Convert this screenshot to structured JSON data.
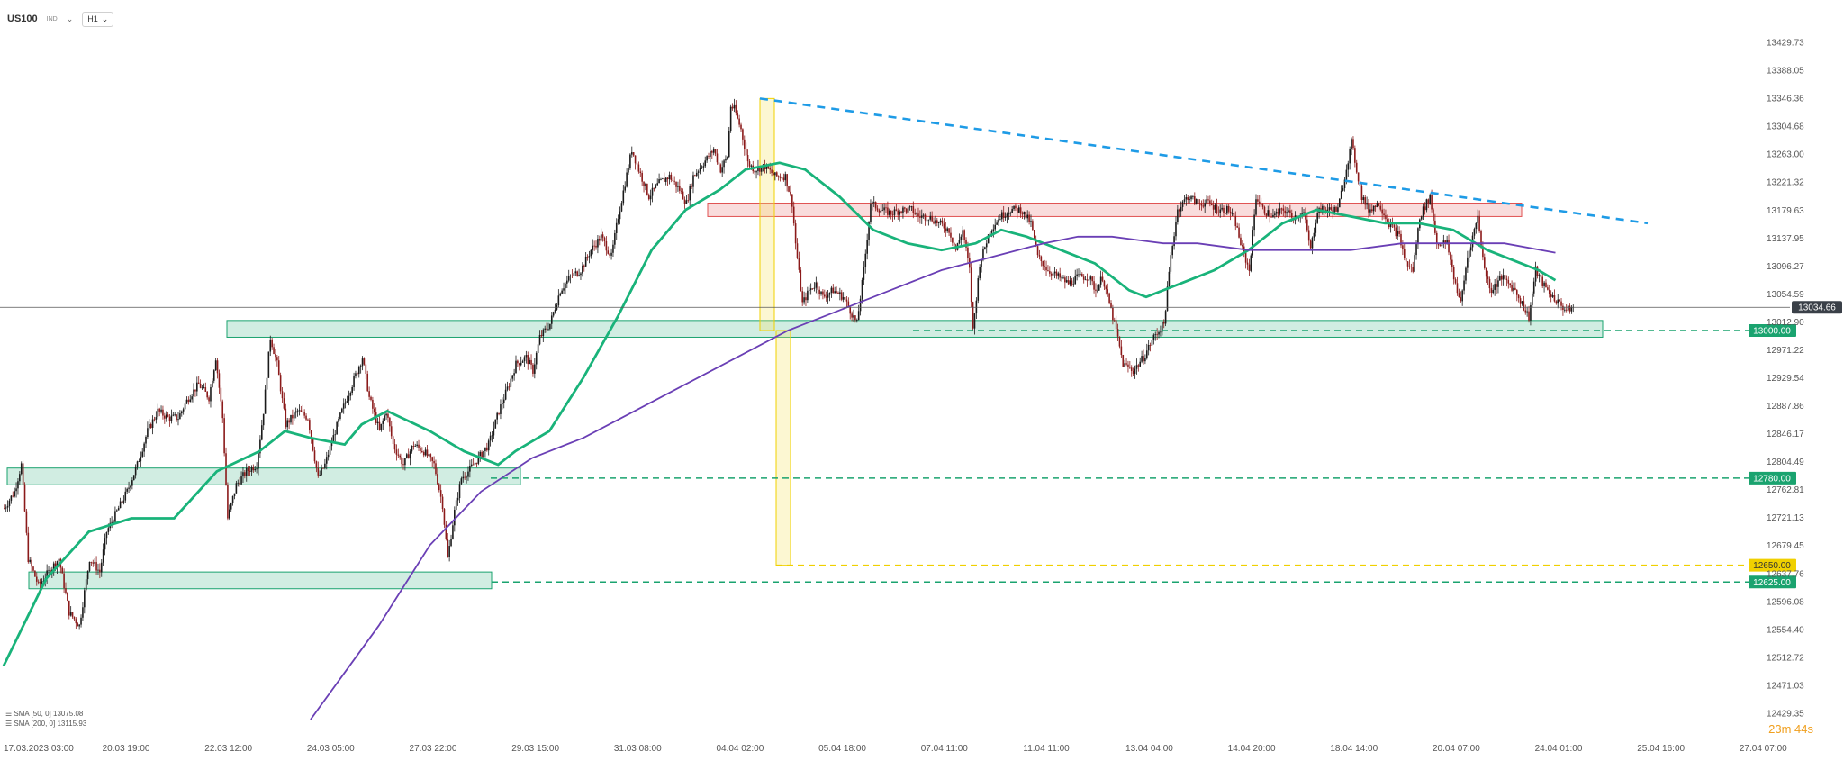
{
  "toolbar": {
    "symbol": "US100",
    "symbol_tag": "IND",
    "timeframe": "H1"
  },
  "countdown": "23m 44s",
  "chart_data": {
    "type": "candlestick",
    "title": "",
    "xlabel": "",
    "ylabel": "",
    "ylim": [
      12400,
      13460
    ],
    "y_ticks": [
      13429.73,
      13388.05,
      13346.36,
      13304.68,
      13263.0,
      13221.32,
      13179.63,
      13137.95,
      13096.27,
      13054.59,
      13012.9,
      12971.22,
      12929.54,
      12887.86,
      12846.17,
      12804.49,
      12762.81,
      12721.13,
      12679.45,
      12637.76,
      12596.08,
      12554.4,
      12512.72,
      12471.03,
      12429.35
    ],
    "x_ticks": [
      "17.03.2023  03:00",
      "20.03  19:00",
      "22.03  12:00",
      "24.03  05:00",
      "27.03  22:00",
      "29.03  15:00",
      "31.03  08:00",
      "04.04  02:00",
      "05.04  18:00",
      "07.04  11:00",
      "11.04  11:00",
      "13.04  04:00",
      "14.04  20:00",
      "18.04  14:00",
      "20.04  07:00",
      "24.04  01:00",
      "25.04  16:00",
      "27.04  07:00"
    ],
    "x_tick_index": [
      0,
      60,
      120,
      180,
      240,
      300,
      360,
      420,
      480,
      540,
      600,
      660,
      720,
      780,
      840,
      900,
      960,
      1020
    ],
    "last_price": "13034.66",
    "current_price": 13034.66,
    "price_path": [
      [
        0,
        12735
      ],
      [
        6,
        12760
      ],
      [
        10,
        12800
      ],
      [
        14,
        12660
      ],
      [
        20,
        12620
      ],
      [
        26,
        12640
      ],
      [
        32,
        12660
      ],
      [
        38,
        12580
      ],
      [
        44,
        12560
      ],
      [
        50,
        12660
      ],
      [
        56,
        12640
      ],
      [
        60,
        12700
      ],
      [
        66,
        12730
      ],
      [
        72,
        12760
      ],
      [
        78,
        12800
      ],
      [
        84,
        12850
      ],
      [
        90,
        12880
      ],
      [
        96,
        12870
      ],
      [
        102,
        12870
      ],
      [
        108,
        12900
      ],
      [
        114,
        12920
      ],
      [
        120,
        12900
      ],
      [
        124,
        12960
      ],
      [
        128,
        12870
      ],
      [
        131,
        12720
      ],
      [
        136,
        12770
      ],
      [
        142,
        12790
      ],
      [
        148,
        12800
      ],
      [
        152,
        12880
      ],
      [
        156,
        12990
      ],
      [
        160,
        12950
      ],
      [
        165,
        12860
      ],
      [
        172,
        12880
      ],
      [
        178,
        12870
      ],
      [
        184,
        12780
      ],
      [
        188,
        12800
      ],
      [
        194,
        12850
      ],
      [
        198,
        12880
      ],
      [
        204,
        12920
      ],
      [
        210,
        12960
      ],
      [
        214,
        12900
      ],
      [
        220,
        12850
      ],
      [
        224,
        12880
      ],
      [
        228,
        12830
      ],
      [
        234,
        12800
      ],
      [
        240,
        12830
      ],
      [
        246,
        12820
      ],
      [
        252,
        12800
      ],
      [
        257,
        12740
      ],
      [
        260,
        12660
      ],
      [
        264,
        12730
      ],
      [
        268,
        12780
      ],
      [
        272,
        12790
      ],
      [
        278,
        12810
      ],
      [
        284,
        12830
      ],
      [
        290,
        12880
      ],
      [
        296,
        12920
      ],
      [
        300,
        12950
      ],
      [
        306,
        12960
      ],
      [
        310,
        12940
      ],
      [
        314,
        12990
      ],
      [
        320,
        13010
      ],
      [
        326,
        13060
      ],
      [
        332,
        13080
      ],
      [
        338,
        13090
      ],
      [
        344,
        13120
      ],
      [
        350,
        13140
      ],
      [
        356,
        13110
      ],
      [
        360,
        13170
      ],
      [
        364,
        13220
      ],
      [
        368,
        13270
      ],
      [
        372,
        13240
      ],
      [
        378,
        13200
      ],
      [
        384,
        13220
      ],
      [
        390,
        13230
      ],
      [
        396,
        13210
      ],
      [
        400,
        13190
      ],
      [
        404,
        13230
      ],
      [
        410,
        13250
      ],
      [
        416,
        13270
      ],
      [
        420,
        13240
      ],
      [
        424,
        13260
      ],
      [
        426,
        13335
      ],
      [
        428,
        13330
      ],
      [
        432,
        13300
      ],
      [
        436,
        13250
      ],
      [
        440,
        13240
      ],
      [
        446,
        13245
      ],
      [
        452,
        13230
      ],
      [
        458,
        13230
      ],
      [
        462,
        13190
      ],
      [
        464,
        13130
      ],
      [
        468,
        13040
      ],
      [
        472,
        13060
      ],
      [
        476,
        13070
      ],
      [
        480,
        13050
      ],
      [
        486,
        13060
      ],
      [
        492,
        13050
      ],
      [
        496,
        13030
      ],
      [
        500,
        13010
      ],
      [
        504,
        13090
      ],
      [
        508,
        13190
      ],
      [
        514,
        13180
      ],
      [
        520,
        13175
      ],
      [
        526,
        13180
      ],
      [
        532,
        13180
      ],
      [
        536,
        13170
      ],
      [
        542,
        13170
      ],
      [
        548,
        13160
      ],
      [
        554,
        13150
      ],
      [
        558,
        13120
      ],
      [
        562,
        13150
      ],
      [
        566,
        13090
      ],
      [
        568,
        13000
      ],
      [
        572,
        13100
      ],
      [
        578,
        13150
      ],
      [
        584,
        13170
      ],
      [
        590,
        13180
      ],
      [
        596,
        13180
      ],
      [
        602,
        13160
      ],
      [
        606,
        13110
      ],
      [
        612,
        13090
      ],
      [
        618,
        13080
      ],
      [
        624,
        13070
      ],
      [
        630,
        13080
      ],
      [
        636,
        13080
      ],
      [
        640,
        13060
      ],
      [
        644,
        13080
      ],
      [
        648,
        13040
      ],
      [
        652,
        13000
      ],
      [
        656,
        12950
      ],
      [
        662,
        12940
      ],
      [
        668,
        12960
      ],
      [
        674,
        12990
      ],
      [
        680,
        13010
      ],
      [
        684,
        13110
      ],
      [
        688,
        13180
      ],
      [
        694,
        13200
      ],
      [
        700,
        13190
      ],
      [
        706,
        13190
      ],
      [
        712,
        13180
      ],
      [
        718,
        13180
      ],
      [
        722,
        13160
      ],
      [
        726,
        13120
      ],
      [
        730,
        13090
      ],
      [
        734,
        13200
      ],
      [
        738,
        13180
      ],
      [
        744,
        13170
      ],
      [
        750,
        13180
      ],
      [
        756,
        13170
      ],
      [
        762,
        13175
      ],
      [
        766,
        13120
      ],
      [
        770,
        13180
      ],
      [
        776,
        13180
      ],
      [
        782,
        13180
      ],
      [
        786,
        13230
      ],
      [
        790,
        13280
      ],
      [
        796,
        13200
      ],
      [
        800,
        13180
      ],
      [
        806,
        13190
      ],
      [
        812,
        13160
      ],
      [
        818,
        13140
      ],
      [
        822,
        13100
      ],
      [
        826,
        13090
      ],
      [
        830,
        13170
      ],
      [
        836,
        13200
      ],
      [
        840,
        13130
      ],
      [
        846,
        13130
      ],
      [
        850,
        13080
      ],
      [
        854,
        13040
      ],
      [
        858,
        13110
      ],
      [
        864,
        13170
      ],
      [
        868,
        13090
      ],
      [
        872,
        13060
      ],
      [
        878,
        13080
      ],
      [
        882,
        13070
      ],
      [
        886,
        13060
      ],
      [
        890,
        13040
      ],
      [
        894,
        13020
      ],
      [
        898,
        13090
      ],
      [
        902,
        13070
      ],
      [
        908,
        13050
      ],
      [
        912,
        13040
      ],
      [
        916,
        13030
      ],
      [
        920,
        13034.66
      ]
    ],
    "annotations": [
      {
        "type": "level",
        "label": "13000.00",
        "value": 13000,
        "color": "#1aa36f",
        "style": "dashed"
      },
      {
        "type": "level",
        "label": "12780.00",
        "value": 12780,
        "color": "#1aa36f",
        "style": "dashed"
      },
      {
        "type": "level",
        "label": "12650.00",
        "value": 12650,
        "color": "#f0d000",
        "style": "dashed"
      },
      {
        "type": "level",
        "label": "12625.00",
        "value": 12625,
        "color": "#1aa36f",
        "style": "dashed"
      },
      {
        "type": "zone",
        "from": 12990,
        "to": 13015,
        "color": "#1aa36f"
      },
      {
        "type": "zone",
        "from": 12770,
        "to": 12795,
        "color": "#1aa36f"
      },
      {
        "type": "zone",
        "from": 12615,
        "to": 12640,
        "color": "#1aa36f"
      },
      {
        "type": "zone",
        "from": 13170,
        "to": 13190,
        "color": "#e05050"
      },
      {
        "type": "trendline",
        "from": [
          13346
        ],
        "to": [
          13170
        ],
        "color": "#1e9be6"
      }
    ],
    "series": [
      {
        "name": "SMA [50, 0]",
        "value": "13075.08",
        "color": "#19b37a",
        "path": [
          [
            0,
            12500
          ],
          [
            25,
            12630
          ],
          [
            50,
            12700
          ],
          [
            75,
            12720
          ],
          [
            100,
            12720
          ],
          [
            125,
            12790
          ],
          [
            150,
            12820
          ],
          [
            165,
            12850
          ],
          [
            180,
            12840
          ],
          [
            200,
            12830
          ],
          [
            210,
            12860
          ],
          [
            225,
            12880
          ],
          [
            250,
            12850
          ],
          [
            270,
            12820
          ],
          [
            290,
            12800
          ],
          [
            300,
            12820
          ],
          [
            320,
            12850
          ],
          [
            340,
            12930
          ],
          [
            360,
            13020
          ],
          [
            380,
            13120
          ],
          [
            400,
            13180
          ],
          [
            420,
            13210
          ],
          [
            435,
            13240
          ],
          [
            455,
            13250
          ],
          [
            470,
            13240
          ],
          [
            490,
            13200
          ],
          [
            510,
            13150
          ],
          [
            530,
            13130
          ],
          [
            550,
            13120
          ],
          [
            570,
            13130
          ],
          [
            585,
            13150
          ],
          [
            600,
            13140
          ],
          [
            620,
            13120
          ],
          [
            640,
            13100
          ],
          [
            660,
            13060
          ],
          [
            670,
            13050
          ],
          [
            690,
            13070
          ],
          [
            710,
            13090
          ],
          [
            730,
            13120
          ],
          [
            750,
            13160
          ],
          [
            770,
            13180
          ],
          [
            790,
            13170
          ],
          [
            810,
            13160
          ],
          [
            830,
            13160
          ],
          [
            850,
            13150
          ],
          [
            870,
            13120
          ],
          [
            890,
            13100
          ],
          [
            900,
            13090
          ],
          [
            910,
            13075
          ]
        ]
      },
      {
        "name": "SMA [200, 0]",
        "value": "13115.93",
        "color": "#6a3fb5",
        "path": [
          [
            180,
            12420
          ],
          [
            220,
            12560
          ],
          [
            250,
            12680
          ],
          [
            280,
            12760
          ],
          [
            310,
            12810
          ],
          [
            340,
            12840
          ],
          [
            370,
            12880
          ],
          [
            400,
            12920
          ],
          [
            430,
            12960
          ],
          [
            460,
            13000
          ],
          [
            490,
            13030
          ],
          [
            520,
            13060
          ],
          [
            550,
            13090
          ],
          [
            580,
            13110
          ],
          [
            610,
            13130
          ],
          [
            630,
            13140
          ],
          [
            650,
            13140
          ],
          [
            680,
            13130
          ],
          [
            700,
            13130
          ],
          [
            730,
            13120
          ],
          [
            760,
            13120
          ],
          [
            790,
            13120
          ],
          [
            820,
            13130
          ],
          [
            850,
            13130
          ],
          [
            880,
            13130
          ],
          [
            910,
            13116
          ]
        ]
      }
    ]
  }
}
